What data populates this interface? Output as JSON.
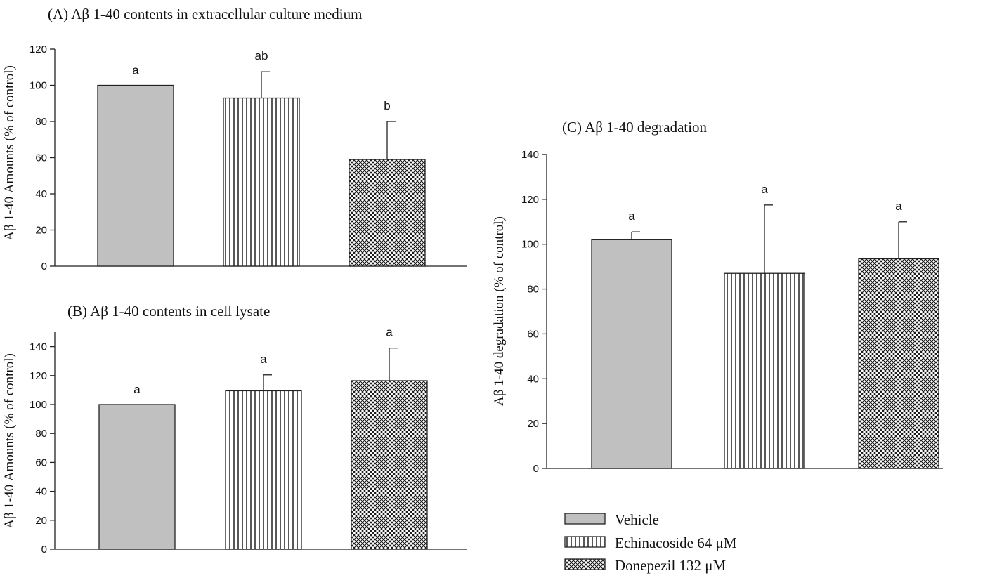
{
  "legend": [
    {
      "label": "Vehicle",
      "pattern": "solid",
      "color": "#c0c0c0"
    },
    {
      "label": "Echinacoside 64 μM",
      "pattern": "vertical-stripes"
    },
    {
      "label": "Donepezil 132 μM",
      "pattern": "crosshatch"
    }
  ],
  "chart_data": [
    {
      "type": "bar",
      "title": "(A) Aβ 1-40 contents in extracellular culture medium",
      "ylabel": "Aβ 1-40 Amounts (% of control)",
      "xlabel": "",
      "ylim": [
        0,
        120
      ],
      "yticks": [
        0,
        20,
        40,
        60,
        80,
        100,
        120
      ],
      "categories": [
        "Vehicle",
        "Echinacoside 64 μM",
        "Donepezil 132 μM"
      ],
      "values": [
        100,
        93,
        59
      ],
      "errors": [
        0,
        14.5,
        21
      ],
      "labels": [
        "a",
        "ab",
        "b"
      ]
    },
    {
      "type": "bar",
      "title": "(B) Aβ 1-40 contents in cell lysate",
      "ylabel": "Aβ 1-40 Amounts (% of control)",
      "xlabel": "",
      "ylim": [
        0,
        150
      ],
      "yticks": [
        0,
        20,
        40,
        60,
        80,
        100,
        120,
        140
      ],
      "categories": [
        "Vehicle",
        "Echinacoside 64 μM",
        "Donepezil 132 μM"
      ],
      "values": [
        100,
        109.5,
        116.5
      ],
      "errors": [
        0,
        11,
        22.5
      ],
      "labels": [
        "a",
        "a",
        "a"
      ]
    },
    {
      "type": "bar",
      "title": "(C) Aβ 1-40 degradation",
      "ylabel": "Aβ 1-40 degradation (% of control)",
      "xlabel": "",
      "ylim": [
        0,
        140
      ],
      "yticks": [
        0,
        20,
        40,
        60,
        80,
        100,
        120,
        140
      ],
      "categories": [
        "Vehicle",
        "Echinacoside 64 μM",
        "Donepezil 132 μM"
      ],
      "values": [
        102,
        87,
        93.5
      ],
      "errors": [
        3.5,
        30.5,
        16.5
      ],
      "labels": [
        "a",
        "a",
        "a"
      ]
    }
  ]
}
